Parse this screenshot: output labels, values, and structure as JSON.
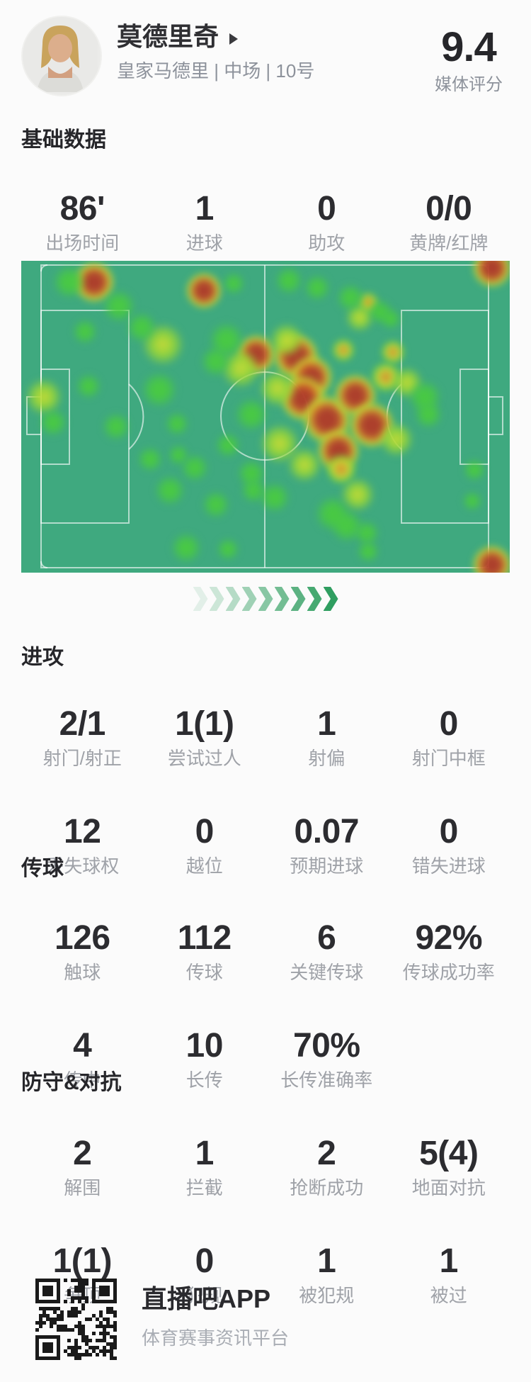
{
  "header": {
    "player_name": "莫德里奇",
    "team_position_number": "皇家马德里 | 中场 | 10号",
    "rating": "9.4",
    "rating_label": "媒体评分"
  },
  "sections": {
    "basic": {
      "title": "基础数据",
      "rows": [
        [
          {
            "v": "86'",
            "l": "出场时间"
          },
          {
            "v": "1",
            "l": "进球"
          },
          {
            "v": "0",
            "l": "助攻"
          },
          {
            "v": "0/0",
            "l": "黄牌/红牌"
          }
        ]
      ]
    },
    "attack": {
      "title": "进攻",
      "rows": [
        [
          {
            "v": "2/1",
            "l": "射门/射正"
          },
          {
            "v": "1(1)",
            "l": "尝试过人"
          },
          {
            "v": "1",
            "l": "射偏"
          },
          {
            "v": "0",
            "l": "射门中框"
          }
        ],
        [
          {
            "v": "12",
            "l": "丢失球权"
          },
          {
            "v": "0",
            "l": "越位"
          },
          {
            "v": "0.07",
            "l": "预期进球"
          },
          {
            "v": "0",
            "l": "错失进球"
          }
        ]
      ]
    },
    "passing": {
      "title": "传球",
      "rows": [
        [
          {
            "v": "126",
            "l": "触球"
          },
          {
            "v": "112",
            "l": "传球"
          },
          {
            "v": "6",
            "l": "关键传球"
          },
          {
            "v": "92%",
            "l": "传球成功率"
          }
        ],
        [
          {
            "v": "4",
            "l": "传中"
          },
          {
            "v": "10",
            "l": "长传"
          },
          {
            "v": "70%",
            "l": "长传准确率"
          }
        ]
      ]
    },
    "defense": {
      "title": "防守&对抗",
      "rows": [
        [
          {
            "v": "2",
            "l": "解围"
          },
          {
            "v": "1",
            "l": "拦截"
          },
          {
            "v": "2",
            "l": "抢断成功"
          },
          {
            "v": "5(4)",
            "l": "地面对抗"
          }
        ],
        [
          {
            "v": "1(1)",
            "l": "争顶"
          },
          {
            "v": "0",
            "l": "犯规"
          },
          {
            "v": "1",
            "l": "被犯规"
          },
          {
            "v": "1",
            "l": "被过"
          }
        ]
      ]
    }
  },
  "heatmap": {
    "type": "heatmap",
    "pitch_color": "#3fa97f",
    "line_color": "rgba(255,255,255,0.6)",
    "intensity_scale": [
      "green-low",
      "yellow-mid",
      "orange-high",
      "red-peak"
    ],
    "points": [
      [
        665,
        10,
        26,
        4
      ],
      [
        103,
        30,
        27,
        4
      ],
      [
        258,
        42,
        24,
        4
      ],
      [
        332,
        132,
        26,
        4
      ],
      [
        388,
        135,
        30,
        4
      ],
      [
        410,
        164,
        28,
        4
      ],
      [
        398,
        194,
        30,
        4
      ],
      [
        432,
        224,
        32,
        4
      ],
      [
        472,
        190,
        28,
        4
      ],
      [
        495,
        232,
        30,
        4
      ],
      [
        448,
        268,
        28,
        4
      ],
      [
        665,
        429,
        26,
        4
      ],
      [
        455,
        126,
        15,
        3
      ],
      [
        490,
        59,
        14,
        3
      ],
      [
        525,
        129,
        16,
        3
      ],
      [
        515,
        164,
        20,
        3
      ],
      [
        452,
        294,
        20,
        3
      ],
      [
        200,
        118,
        30,
        2
      ],
      [
        32,
        192,
        26,
        2
      ],
      [
        310,
        152,
        28,
        2
      ],
      [
        362,
        180,
        26,
        2
      ],
      [
        365,
        258,
        28,
        2
      ],
      [
        400,
        288,
        24,
        2
      ],
      [
        545,
        172,
        22,
        2
      ],
      [
        530,
        252,
        24,
        2
      ],
      [
        475,
        330,
        24,
        2
      ],
      [
        375,
        112,
        24,
        2
      ],
      [
        478,
        80,
        20,
        2
      ],
      [
        68,
        30,
        24,
        1
      ],
      [
        138,
        64,
        24,
        1
      ],
      [
        170,
        94,
        22,
        1
      ],
      [
        90,
        100,
        18,
        1
      ],
      [
        95,
        177,
        18,
        1
      ],
      [
        45,
        228,
        20,
        1
      ],
      [
        300,
        32,
        16,
        1
      ],
      [
        378,
        28,
        20,
        1
      ],
      [
        418,
        38,
        19,
        1
      ],
      [
        465,
        52,
        20,
        1
      ],
      [
        507,
        72,
        18,
        1
      ],
      [
        522,
        82,
        15,
        1
      ],
      [
        290,
        112,
        26,
        1
      ],
      [
        275,
        142,
        22,
        1
      ],
      [
        325,
        217,
        24,
        1
      ],
      [
        570,
        192,
        24,
        1
      ],
      [
        575,
        217,
        20,
        1
      ],
      [
        195,
        182,
        26,
        1
      ],
      [
        220,
        230,
        17,
        1
      ],
      [
        182,
        280,
        18,
        1
      ],
      [
        222,
        274,
        15,
        1
      ],
      [
        210,
        324,
        22,
        1
      ],
      [
        134,
        234,
        20,
        1
      ],
      [
        245,
        292,
        20,
        1
      ],
      [
        275,
        344,
        20,
        1
      ],
      [
        325,
        300,
        20,
        1
      ],
      [
        328,
        324,
        18,
        1
      ],
      [
        358,
        334,
        22,
        1
      ],
      [
        292,
        260,
        18,
        1
      ],
      [
        440,
        357,
        26,
        1
      ],
      [
        460,
        374,
        24,
        1
      ],
      [
        488,
        384,
        18,
        1
      ],
      [
        490,
        410,
        16,
        1
      ],
      [
        233,
        405,
        22,
        1
      ],
      [
        292,
        407,
        16,
        1
      ],
      [
        640,
        295,
        16,
        1
      ],
      [
        637,
        339,
        14,
        1
      ]
    ]
  },
  "chevrons": {
    "count": 9,
    "color": "#2f9e60",
    "min_opacity": 0.12,
    "max_opacity": 1
  },
  "footer": {
    "app_name": "直播吧APP",
    "app_desc": "体育赛事资讯平台",
    "qr": "qr-code"
  }
}
